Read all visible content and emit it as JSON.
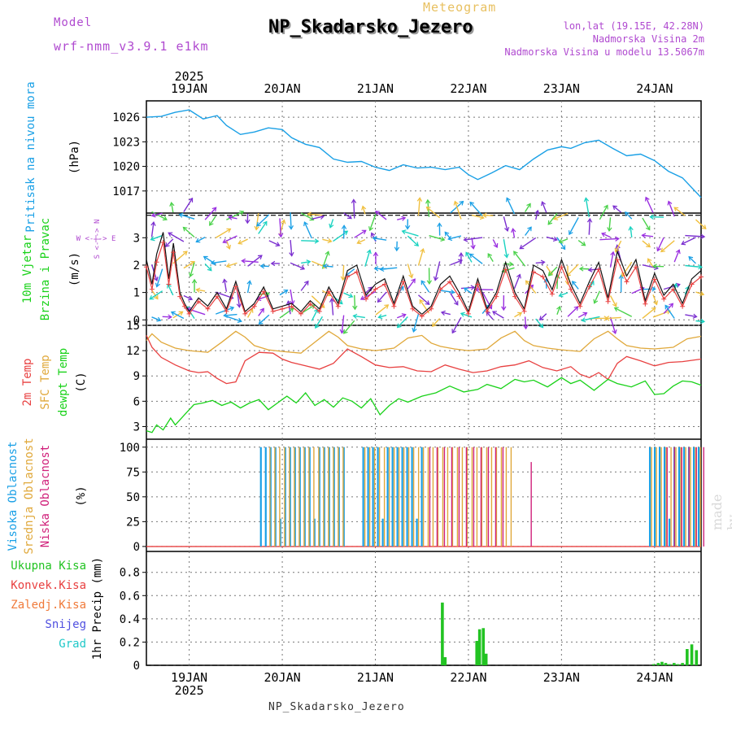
{
  "header": {
    "model_label": "Model",
    "model_name": "wrf-nmm_v3.9.1 e1km",
    "chart_kind": "Meteogram",
    "station": "NP_Skadarsko_Jezero",
    "lonlat": "lon,lat (19.15E, 42.28N)",
    "elevation": "Nadmorska Visina 2m",
    "model_elevation": "Nadmorska Visina u modelu 13.5067m"
  },
  "footer": {
    "station": "NP_Skadarsko_Jezero",
    "watermark": "made by Angel"
  },
  "colors": {
    "pressure": "#1aa0e6",
    "temp2m": "#e84040",
    "sfc": "#e0a83a",
    "dewpt": "#19d219",
    "purple": "#b04ad0",
    "grid": "#777777",
    "precip": "#22c322",
    "wind_line": "#111111"
  },
  "chart_data": [
    {
      "type": "line",
      "name": "pressure",
      "ylabel": "Pritisak na nivou mora",
      "unit": "(hPa)",
      "yticks": [
        1017,
        1020,
        1023,
        1026
      ],
      "ylim": [
        1014.3,
        1028.0
      ],
      "x_start_day": 18.54,
      "x_end_day": 24.5,
      "dates": [
        "19JAN",
        "20JAN",
        "21JAN",
        "22JAN",
        "23JAN",
        "24JAN"
      ],
      "year": "2025",
      "x": [
        18.54,
        18.7,
        18.85,
        19.0,
        19.15,
        19.3,
        19.4,
        19.55,
        19.7,
        19.85,
        20.0,
        20.1,
        20.25,
        20.4,
        20.55,
        20.7,
        20.85,
        21.0,
        21.15,
        21.3,
        21.45,
        21.6,
        21.75,
        21.9,
        22.0,
        22.1,
        22.25,
        22.4,
        22.55,
        22.7,
        22.85,
        23.0,
        23.1,
        23.25,
        23.4,
        23.55,
        23.7,
        23.85,
        24.0,
        24.15,
        24.3,
        24.5
      ],
      "values": [
        1026.0,
        1026.1,
        1026.6,
        1026.9,
        1025.8,
        1026.2,
        1025.0,
        1023.9,
        1024.2,
        1024.7,
        1024.5,
        1023.5,
        1022.7,
        1022.3,
        1020.9,
        1020.5,
        1020.6,
        1019.9,
        1019.5,
        1020.2,
        1019.8,
        1019.9,
        1019.6,
        1019.9,
        1019.0,
        1018.4,
        1019.2,
        1020.1,
        1019.6,
        1020.9,
        1022.0,
        1022.4,
        1022.2,
        1022.9,
        1023.2,
        1022.2,
        1021.3,
        1021.5,
        1020.7,
        1019.4,
        1018.6,
        1016.2
      ]
    },
    {
      "type": "line",
      "name": "wind",
      "ylabel": "10m Vjetar",
      "ylabel2": "Brzina i Pravac",
      "unit": "(m/s)",
      "compass": "W <-|-> E",
      "compass_v": "S <-|-> N",
      "yticks": [
        0,
        1,
        2,
        3
      ],
      "ylim": [
        -0.2,
        3.9
      ],
      "x_start_day": 18.54,
      "x_end_day": 24.5,
      "series": [
        {
          "name": "speed",
          "x": [
            18.54,
            18.6,
            18.65,
            18.72,
            18.78,
            18.83,
            18.9,
            18.95,
            19.0,
            19.1,
            19.2,
            19.3,
            19.4,
            19.5,
            19.6,
            19.7,
            19.8,
            19.9,
            20.0,
            20.1,
            20.2,
            20.3,
            20.4,
            20.5,
            20.6,
            20.7,
            20.8,
            20.9,
            21.0,
            21.1,
            21.2,
            21.3,
            21.4,
            21.5,
            21.6,
            21.7,
            21.8,
            21.9,
            22.0,
            22.1,
            22.2,
            22.3,
            22.4,
            22.5,
            22.6,
            22.7,
            22.8,
            22.9,
            23.0,
            23.1,
            23.2,
            23.3,
            23.4,
            23.5,
            23.6,
            23.7,
            23.8,
            23.9,
            24.0,
            24.1,
            24.2,
            24.3,
            24.4,
            24.5
          ],
          "values": [
            2.2,
            1.3,
            2.4,
            3.2,
            1.5,
            2.8,
            1.0,
            0.6,
            0.3,
            0.8,
            0.5,
            1.0,
            0.4,
            1.4,
            0.3,
            0.6,
            1.2,
            0.4,
            0.5,
            0.6,
            0.3,
            0.7,
            0.4,
            1.2,
            0.6,
            1.8,
            2.0,
            0.9,
            1.3,
            1.5,
            0.6,
            1.6,
            0.5,
            0.2,
            0.5,
            1.3,
            1.6,
            1.0,
            0.3,
            1.5,
            0.4,
            1.0,
            2.1,
            1.0,
            0.4,
            2.0,
            1.8,
            1.1,
            2.2,
            1.3,
            0.6,
            1.4,
            2.1,
            0.8,
            2.5,
            1.6,
            2.2,
            0.7,
            1.7,
            0.9,
            1.3,
            0.6,
            1.5,
            1.8
          ]
        }
      ]
    },
    {
      "type": "line",
      "name": "temperature",
      "ylabel": "2m Temp",
      "ylabel2": "SFC Temp",
      "ylabel3": "dewpt Temp",
      "unit": "(C)",
      "yticks": [
        3,
        6,
        9,
        12,
        15
      ],
      "ylim": [
        1.5,
        15.0
      ],
      "x_start_day": 18.54,
      "x_end_day": 24.5,
      "series": [
        {
          "name": "SFC Temp",
          "x": [
            18.54,
            18.6,
            18.7,
            18.85,
            19.0,
            19.2,
            19.35,
            19.5,
            19.6,
            19.7,
            19.85,
            20.0,
            20.2,
            20.35,
            20.5,
            20.6,
            20.7,
            20.85,
            21.0,
            21.2,
            21.35,
            21.5,
            21.6,
            21.7,
            21.85,
            22.0,
            22.2,
            22.35,
            22.5,
            22.6,
            22.7,
            22.85,
            23.0,
            23.2,
            23.35,
            23.5,
            23.6,
            23.7,
            23.85,
            24.0,
            24.2,
            24.35,
            24.5
          ],
          "values": [
            13.2,
            14.0,
            13.0,
            12.3,
            12.0,
            11.8,
            13.0,
            14.3,
            13.6,
            12.6,
            12.1,
            11.9,
            11.7,
            13.0,
            14.3,
            13.6,
            12.6,
            12.2,
            12.0,
            12.3,
            13.5,
            13.8,
            12.9,
            12.5,
            12.2,
            12.0,
            12.2,
            13.5,
            14.3,
            13.2,
            12.6,
            12.3,
            12.1,
            11.9,
            13.4,
            14.3,
            13.4,
            12.6,
            12.3,
            12.2,
            12.4,
            13.4,
            13.7
          ]
        },
        {
          "name": "2m Temp",
          "x": [
            18.54,
            18.6,
            18.7,
            18.85,
            19.0,
            19.1,
            19.2,
            19.3,
            19.4,
            19.5,
            19.6,
            19.75,
            19.9,
            20.0,
            20.1,
            20.25,
            20.4,
            20.55,
            20.7,
            20.85,
            21.0,
            21.15,
            21.3,
            21.45,
            21.6,
            21.75,
            21.9,
            22.05,
            22.2,
            22.35,
            22.5,
            22.65,
            22.8,
            22.95,
            23.1,
            23.2,
            23.3,
            23.4,
            23.5,
            23.6,
            23.7,
            23.85,
            24.0,
            24.15,
            24.3,
            24.5
          ],
          "values": [
            13.8,
            12.4,
            11.2,
            10.3,
            9.6,
            9.4,
            9.5,
            8.7,
            8.1,
            8.3,
            10.8,
            11.8,
            11.7,
            11.0,
            10.6,
            10.2,
            9.8,
            10.5,
            12.2,
            11.3,
            10.3,
            10.0,
            10.1,
            9.6,
            9.5,
            10.3,
            9.8,
            9.4,
            9.6,
            10.1,
            10.3,
            10.8,
            10.0,
            9.6,
            10.1,
            9.2,
            8.8,
            9.4,
            8.6,
            10.5,
            11.3,
            10.8,
            10.2,
            10.6,
            10.7,
            11.0
          ]
        },
        {
          "name": "dewpt Temp",
          "x": [
            18.54,
            18.6,
            18.65,
            18.72,
            18.8,
            18.85,
            18.95,
            19.05,
            19.15,
            19.25,
            19.35,
            19.45,
            19.55,
            19.65,
            19.75,
            19.85,
            19.95,
            20.05,
            20.15,
            20.25,
            20.35,
            20.45,
            20.55,
            20.65,
            20.75,
            20.85,
            20.95,
            21.05,
            21.15,
            21.25,
            21.35,
            21.5,
            21.65,
            21.8,
            21.95,
            22.1,
            22.2,
            22.35,
            22.5,
            22.6,
            22.7,
            22.85,
            23.0,
            23.1,
            23.2,
            23.35,
            23.5,
            23.6,
            23.75,
            23.9,
            24.0,
            24.1,
            24.2,
            24.3,
            24.4,
            24.5
          ],
          "values": [
            2.5,
            2.3,
            3.2,
            2.6,
            4.0,
            3.2,
            4.4,
            5.6,
            5.8,
            6.1,
            5.5,
            5.9,
            5.2,
            5.8,
            6.2,
            5.0,
            5.8,
            6.6,
            5.8,
            7.0,
            5.5,
            6.2,
            5.3,
            6.4,
            6.0,
            5.2,
            6.3,
            4.4,
            5.5,
            6.3,
            5.9,
            6.6,
            7.0,
            7.8,
            7.1,
            7.4,
            8.0,
            7.5,
            8.6,
            8.3,
            8.5,
            7.7,
            8.8,
            8.1,
            8.5,
            7.3,
            8.6,
            8.1,
            7.7,
            8.4,
            6.8,
            6.9,
            7.8,
            8.4,
            8.3,
            7.9
          ]
        }
      ]
    },
    {
      "type": "bar",
      "name": "cloud",
      "ylabel": "Visoka Oblacnost",
      "ylabel2": "Srednja Oblacnost",
      "ylabel3": "Niska Oblacnost",
      "unit": "(%)",
      "yticks": [
        0,
        25,
        50,
        75,
        100
      ],
      "ylim": [
        -5,
        108
      ],
      "x_start_day": 18.54,
      "x_end_day": 24.5,
      "periods": [
        {
          "start": 19.77,
          "end": 20.67,
          "level": "high",
          "value": 100
        },
        {
          "start": 19.85,
          "end": 20.67,
          "level": "mid",
          "value": 100
        },
        {
          "start": 20.87,
          "end": 21.5,
          "level": "high",
          "value": 100
        },
        {
          "start": 20.87,
          "end": 21.55,
          "level": "mid",
          "value": 100
        },
        {
          "start": 21.55,
          "end": 22.45,
          "level": "mid",
          "value": 100
        },
        {
          "start": 21.55,
          "end": 22.4,
          "level": "low",
          "value": 100
        },
        {
          "start": 22.64,
          "end": 22.66,
          "level": "low",
          "value": 85
        },
        {
          "start": 23.95,
          "end": 24.5,
          "level": "high",
          "value": 100
        },
        {
          "start": 23.95,
          "end": 24.5,
          "level": "mid",
          "value": 100
        },
        {
          "start": 24.1,
          "end": 24.5,
          "level": "low",
          "value": 100
        }
      ]
    },
    {
      "type": "bar",
      "name": "precip",
      "ylabel": "1hr Precip",
      "unit": "(mm)",
      "legend": [
        "Ukupna Kisa",
        "Konvek.Kisa",
        "Zaledj.Kisa",
        "Snijeg",
        "Grad"
      ],
      "legend_colors": [
        "#22c322",
        "#e84040",
        "#f07a3a",
        "#5050e0",
        "#20c8c8"
      ],
      "yticks": [
        0,
        0.2,
        0.4,
        0.6,
        0.8
      ],
      "ylim": [
        0,
        0.98
      ],
      "x_start_day": 18.54,
      "x_end_day": 24.5,
      "x": [
        21.72,
        21.75,
        22.09,
        22.12,
        22.16,
        22.19,
        23.99,
        24.04,
        24.08,
        24.12,
        24.16,
        24.21,
        24.25,
        24.3,
        24.35,
        24.4,
        24.45
      ],
      "values": [
        0.54,
        0.07,
        0.21,
        0.31,
        0.32,
        0.1,
        0.01,
        0.02,
        0.03,
        0.02,
        0.01,
        0.02,
        0.01,
        0.02,
        0.14,
        0.18,
        0.13
      ]
    }
  ]
}
